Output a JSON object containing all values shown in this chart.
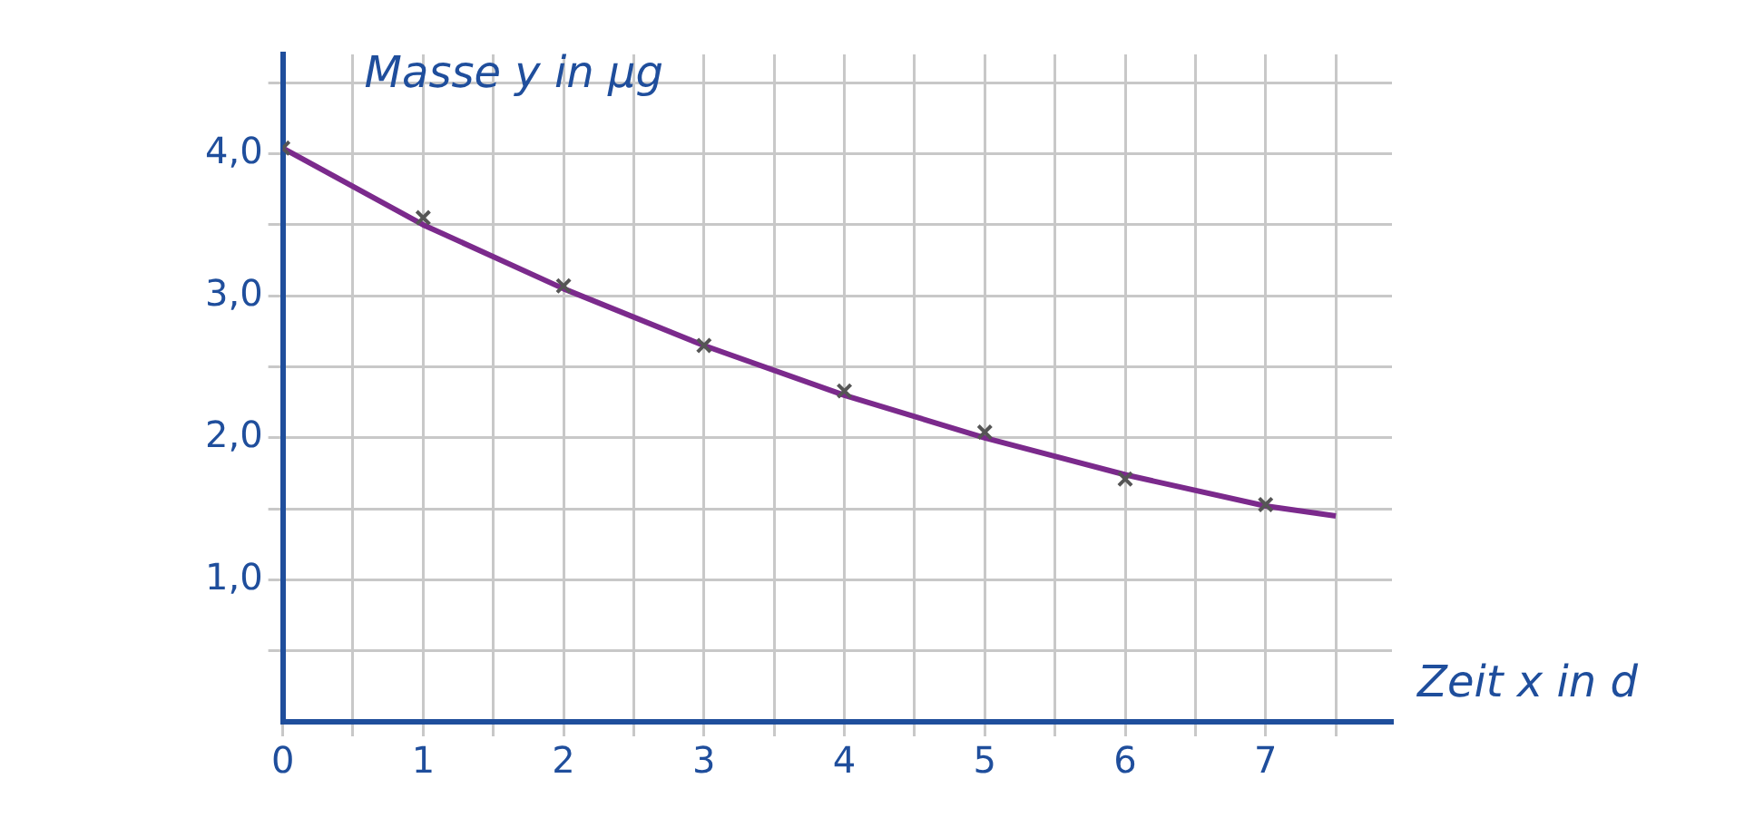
{
  "chart_data": {
    "type": "scatter",
    "xlabel": "Zeit x in d",
    "ylabel": "Masse y in µg",
    "series": [
      {
        "color": "#555555",
        "marker": "cross",
        "x": [
          0,
          1,
          2,
          3,
          4,
          5,
          6,
          7
        ],
        "values": [
          4.04,
          3.55,
          3.07,
          2.65,
          2.33,
          2.04,
          1.71,
          1.53
        ]
      },
      {
        "type": "line",
        "color": "#7b2a8c",
        "marker": "none",
        "x": [
          0,
          1,
          2,
          3,
          4,
          5,
          6,
          7,
          7.5
        ],
        "values": [
          4.04,
          3.5,
          3.05,
          2.65,
          2.3,
          2.0,
          1.74,
          1.52,
          1.45
        ]
      }
    ],
    "xlim": [
      0,
      7.9
    ],
    "ylim": [
      0,
      4.7
    ],
    "xticks": [
      0,
      {
        "value": 0.5,
        "label": null
      },
      1,
      {
        "value": 1.5,
        "label": null
      },
      2,
      {
        "value": 2.5,
        "label": null
      },
      3,
      {
        "value": 3.5,
        "label": null
      },
      4,
      {
        "value": 4.5,
        "label": null
      },
      5,
      {
        "value": 5.5,
        "label": null
      },
      6,
      {
        "value": 6.5,
        "label": null
      },
      7,
      {
        "value": 7.5,
        "label": null
      }
    ],
    "yticks": [
      {
        "value": 0.5,
        "label": null
      },
      {
        "value": 1,
        "label": "1,0"
      },
      {
        "value": 1.5,
        "label": null
      },
      {
        "value": 2,
        "label": "2,0"
      },
      {
        "value": 2.5,
        "label": null
      },
      {
        "value": 3,
        "label": "3,0"
      },
      {
        "value": 3.5,
        "label": null
      },
      {
        "value": 4,
        "label": "4,0"
      },
      {
        "value": 4.5,
        "label": null
      }
    ],
    "grid": true
  }
}
